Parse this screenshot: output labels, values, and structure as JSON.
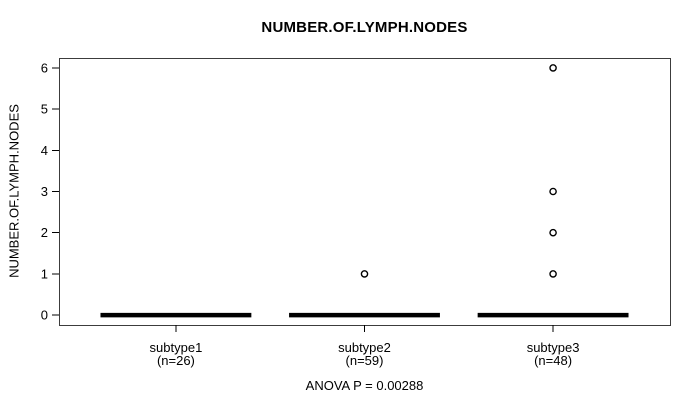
{
  "chart_data": {
    "type": "boxplot",
    "title": "NUMBER.OF.LYMPH.NODES",
    "ylabel": "NUMBER.OF.LYMPH.NODES",
    "xlabel": "",
    "annotation": "ANOVA P = 0.00288",
    "anova_p": 0.00288,
    "ylim": [
      0,
      6
    ],
    "yticks": [
      0,
      1,
      2,
      3,
      4,
      5,
      6
    ],
    "grid": false,
    "legend": null,
    "groups": [
      {
        "label": "subtype1",
        "n": 26,
        "median": 0,
        "q1": 0,
        "q3": 0,
        "whisker_low": 0,
        "whisker_high": 0,
        "outliers": []
      },
      {
        "label": "subtype2",
        "n": 59,
        "median": 0,
        "q1": 0,
        "q3": 0,
        "whisker_low": 0,
        "whisker_high": 0,
        "outliers": [
          1
        ]
      },
      {
        "label": "subtype3",
        "n": 48,
        "median": 0,
        "q1": 0,
        "q3": 0,
        "whisker_low": 0,
        "whisker_high": 0,
        "outliers": [
          1,
          2,
          3,
          6
        ]
      }
    ],
    "colors": {
      "box": "#000000",
      "outlier_stroke": "#000000",
      "outlier_fill": "#ffffff",
      "axis": "#000000",
      "border": "#3c3c3c",
      "background": "#ffffff",
      "text": "#000000"
    }
  }
}
